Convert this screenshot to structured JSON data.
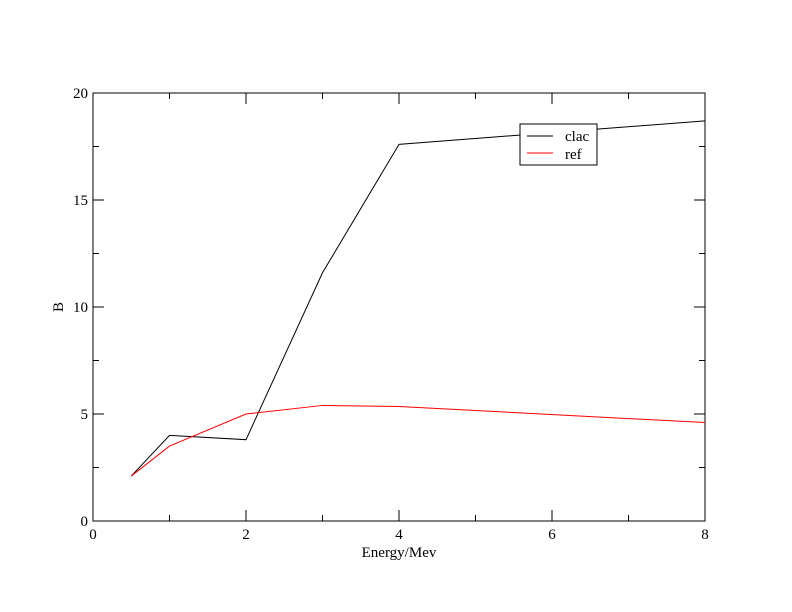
{
  "chart_data": {
    "type": "line",
    "xlabel": "Energy/Mev",
    "ylabel": "B",
    "xlim": [
      0,
      8
    ],
    "ylim": [
      0,
      20
    ],
    "x_major_ticks": [
      0,
      2,
      4,
      6,
      8
    ],
    "x_minor_ticks": [
      1,
      3,
      5,
      7
    ],
    "y_major_ticks": [
      0,
      5,
      10,
      15,
      20
    ],
    "y_minor_ticks": [
      2.5,
      7.5,
      12.5,
      17.5
    ],
    "grid": false,
    "legend_position": "top-right",
    "series": [
      {
        "name": "clac",
        "color": "#000000",
        "x": [
          0.5,
          1,
          2,
          3,
          4,
          8
        ],
        "y": [
          2.1,
          4.0,
          3.8,
          11.6,
          17.6,
          18.7
        ]
      },
      {
        "name": "ref",
        "color": "#ff0000",
        "x": [
          0.5,
          1,
          2,
          3,
          4,
          8
        ],
        "y": [
          2.1,
          3.5,
          5.0,
          5.4,
          5.35,
          4.6
        ]
      }
    ]
  }
}
